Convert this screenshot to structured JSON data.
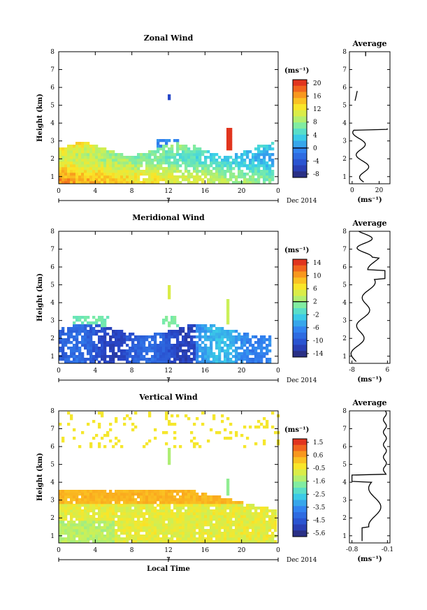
{
  "chart_data": [
    {
      "type": "heatmap",
      "title": "Zonal Wind",
      "ylabel": "Height (km)",
      "x_ticks": [
        "0",
        "4",
        "8",
        "12",
        "16",
        "20",
        "0"
      ],
      "y_ticks": [
        "1",
        "2",
        "3",
        "4",
        "5",
        "6",
        "7",
        "8"
      ],
      "date_tick": "7",
      "date_label": "Dec 2014",
      "colorbar": {
        "unit": "(ms⁻¹)",
        "ticks": [
          "20",
          "16",
          "12",
          "8",
          "4",
          "0",
          "-4",
          "-8"
        ],
        "min": -10,
        "max": 22,
        "zero_tick": "0"
      },
      "average": {
        "title": "Average",
        "x_ticks": [
          "0",
          "20"
        ],
        "xlabel": "(ms⁻¹)",
        "xlim": [
          -2,
          28
        ]
      }
    },
    {
      "type": "heatmap",
      "title": "Meridional Wind",
      "ylabel": "Height (km)",
      "x_ticks": [
        "0",
        "4",
        "8",
        "12",
        "16",
        "20",
        "0"
      ],
      "y_ticks": [
        "1",
        "2",
        "3",
        "4",
        "5",
        "6",
        "7",
        "8"
      ],
      "date_tick": "7",
      "date_label": "Dec 2014",
      "colorbar": {
        "unit": "(ms⁻¹)",
        "ticks": [
          "14",
          "10",
          "6",
          "2",
          "-2",
          "-6",
          "-10",
          "-14"
        ],
        "min": -16,
        "max": 16,
        "zero_tick": "2"
      },
      "average": {
        "title": "Average",
        "x_ticks": [
          "-8",
          "6"
        ],
        "xlabel": "(ms⁻¹)",
        "xlim": [
          -9,
          7
        ]
      }
    },
    {
      "type": "heatmap",
      "title": "Vertical Wind",
      "ylabel": "Height (km)",
      "xlabel": "Local Time",
      "x_ticks": [
        "0",
        "4",
        "8",
        "12",
        "16",
        "20",
        "0"
      ],
      "y_ticks": [
        "1",
        "2",
        "3",
        "4",
        "5",
        "6",
        "7",
        "8"
      ],
      "date_tick": "7",
      "date_label": "Dec 2014",
      "colorbar": {
        "unit": "(ms⁻¹)",
        "ticks": [
          "1.5",
          "0.6",
          "-0.5",
          "-1.6",
          "-2.5",
          "-3.5",
          "-4.5",
          "-5.6"
        ],
        "min": -6.0,
        "max": 2.0,
        "zero_tick": ""
      },
      "average": {
        "title": "Average",
        "x_ticks": [
          "-0.8",
          "-0.1"
        ],
        "xlabel": "(ms⁻¹)",
        "xlim": [
          -0.85,
          -0.05
        ]
      }
    }
  ]
}
